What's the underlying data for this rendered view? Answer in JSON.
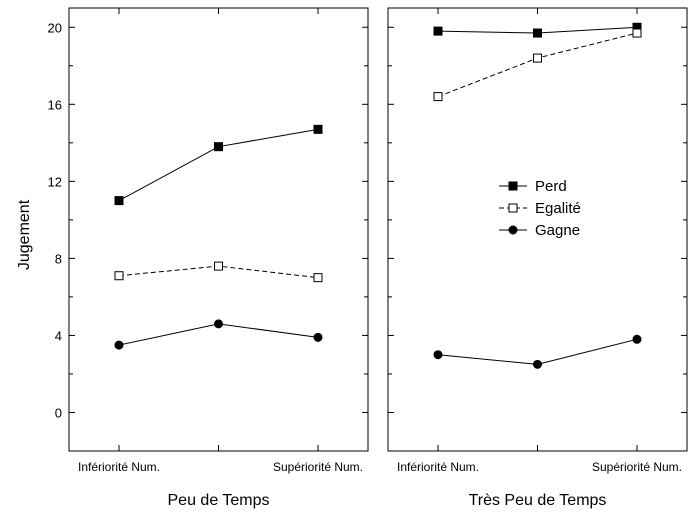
{
  "chart_data": {
    "type": "line",
    "ylabel": "Jugement",
    "ylim": [
      -2,
      21
    ],
    "yticks": [
      "0",
      "4",
      "8",
      "12",
      "16",
      "20"
    ],
    "legend_position": "right-center of second panel",
    "panels": [
      {
        "xlabel": "Peu de Temps",
        "categories": [
          "Infériorité Num.",
          "",
          "Supériorité Num."
        ],
        "series": [
          {
            "name": "Perd",
            "values": [
              11.0,
              13.8,
              14.7
            ],
            "marker": "filled-square",
            "line": "solid"
          },
          {
            "name": "Egalité",
            "values": [
              7.1,
              7.6,
              7.0
            ],
            "marker": "open-square",
            "line": "dashed"
          },
          {
            "name": "Gagne",
            "values": [
              3.5,
              4.6,
              3.9
            ],
            "marker": "filled-circle",
            "line": "solid"
          }
        ]
      },
      {
        "xlabel": "Très Peu de Temps",
        "categories": [
          "Infériorité Num.",
          "",
          "Supériorité Num."
        ],
        "series": [
          {
            "name": "Perd",
            "values": [
              19.8,
              19.7,
              20.0
            ],
            "marker": "filled-square",
            "line": "solid"
          },
          {
            "name": "Egalité",
            "values": [
              16.4,
              18.4,
              19.7
            ],
            "marker": "open-square",
            "line": "dashed"
          },
          {
            "name": "Gagne",
            "values": [
              3.0,
              2.5,
              3.8
            ],
            "marker": "filled-circle",
            "line": "solid"
          }
        ]
      }
    ]
  }
}
